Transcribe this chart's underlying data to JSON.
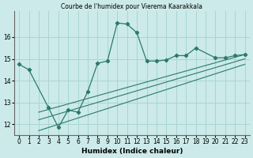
{
  "title": "Courbe de l'humidex pour Vierema Kaarakkala",
  "xlabel": "Humidex (Indice chaleur)",
  "background_color": "#cceaea",
  "grid_color": "#aad4d4",
  "line_color": "#2a7a6a",
  "xlim": [
    -0.5,
    23.5
  ],
  "ylim": [
    11.5,
    17.2
  ],
  "yticks": [
    12,
    13,
    14,
    15,
    16
  ],
  "ytick_labels": [
    "12",
    "13",
    "14",
    "15",
    "16"
  ],
  "xticks": [
    0,
    1,
    2,
    3,
    4,
    5,
    6,
    7,
    8,
    9,
    10,
    11,
    12,
    13,
    14,
    15,
    16,
    17,
    18,
    19,
    20,
    21,
    22,
    23
  ],
  "main_x": [
    0,
    1,
    3,
    4,
    5,
    6,
    7,
    8,
    9,
    10,
    11,
    12,
    13,
    14,
    15,
    16,
    17,
    18,
    20,
    21,
    22,
    23
  ],
  "main_y": [
    14.75,
    14.5,
    12.75,
    11.85,
    12.65,
    12.55,
    13.5,
    14.8,
    14.9,
    16.65,
    16.6,
    16.2,
    14.9,
    14.9,
    14.95,
    15.15,
    15.15,
    15.5,
    15.05,
    15.05,
    15.15,
    15.2
  ],
  "trend1_x": [
    2,
    23
  ],
  "trend1_y": [
    12.55,
    15.2
  ],
  "trend2_x": [
    2,
    23
  ],
  "trend2_y": [
    12.2,
    15.0
  ],
  "trend3_x": [
    2,
    23
  ],
  "trend3_y": [
    11.7,
    14.75
  ]
}
